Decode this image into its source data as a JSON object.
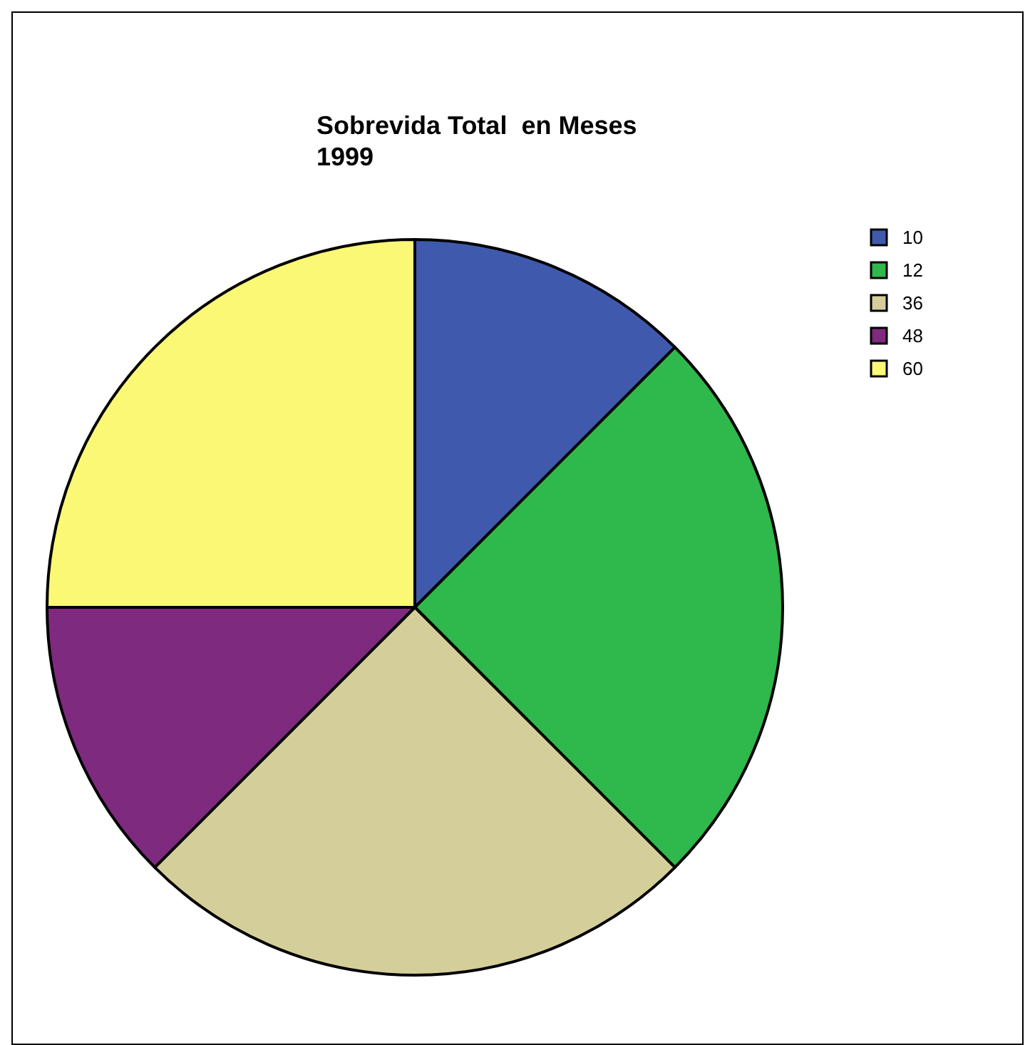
{
  "chart_data": {
    "type": "pie",
    "title": "Sobrevida Total  en Meses\n1999",
    "categories": [
      "10",
      "12",
      "36",
      "48",
      "60"
    ],
    "values": [
      12.5,
      25,
      25,
      12.5,
      25
    ],
    "colors": [
      "#3f5aad",
      "#2fb84b",
      "#d4cf9a",
      "#7e2a7e",
      "#fbf876"
    ],
    "legend": "top right"
  }
}
